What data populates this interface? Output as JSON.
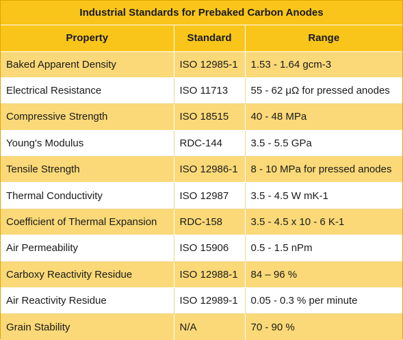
{
  "title": "Industrial Standards for Prebaked Carbon Anodes",
  "headers": {
    "property": "Property",
    "standard": "Standard",
    "range": "Range"
  },
  "rows": [
    {
      "property": "Baked Apparent Density",
      "standard": "ISO 12985-1",
      "range": "1.53 - 1.64 gcm-3"
    },
    {
      "property": "Electrical Resistance",
      "standard": "ISO 11713",
      "range": "55 - 62 μΩ for pressed anodes"
    },
    {
      "property": "Compressive Strength",
      "standard": "ISO 18515",
      "range": "40 - 48 MPa"
    },
    {
      "property": "Young's Modulus",
      "standard": "RDC-144",
      "range": "3.5 - 5.5 GPa"
    },
    {
      "property": "Tensile Strength",
      "standard": "ISO 12986-1",
      "range": "8 - 10 MPa for pressed anodes"
    },
    {
      "property": "Thermal Conductivity",
      "standard": "ISO 12987",
      "range": "3.5 - 4.5 W mK-1"
    },
    {
      "property": "Coefficient of Thermal Expansion",
      "standard": "RDC-158",
      "range": "3.5 - 4.5 x 10 - 6 K-1"
    },
    {
      "property": "Air Permeability",
      "standard": "ISO 15906",
      "range": "0.5 - 1.5 nPm"
    },
    {
      "property": "Carboxy Reactivity Residue",
      "standard": "ISO 12988-1",
      "range": "84 – 96 %"
    },
    {
      "property": "Air Reactivity Residue",
      "standard": "ISO 12989-1",
      "range": "0.05 - 0.3 % per minute"
    },
    {
      "property": "Grain Stability",
      "standard": "N/A",
      "range": "70 - 90 %"
    }
  ],
  "colors": {
    "header_fill": "#f9c51a",
    "odd_row_fill": "#fbd978",
    "even_row_fill": "#ffffff"
  }
}
